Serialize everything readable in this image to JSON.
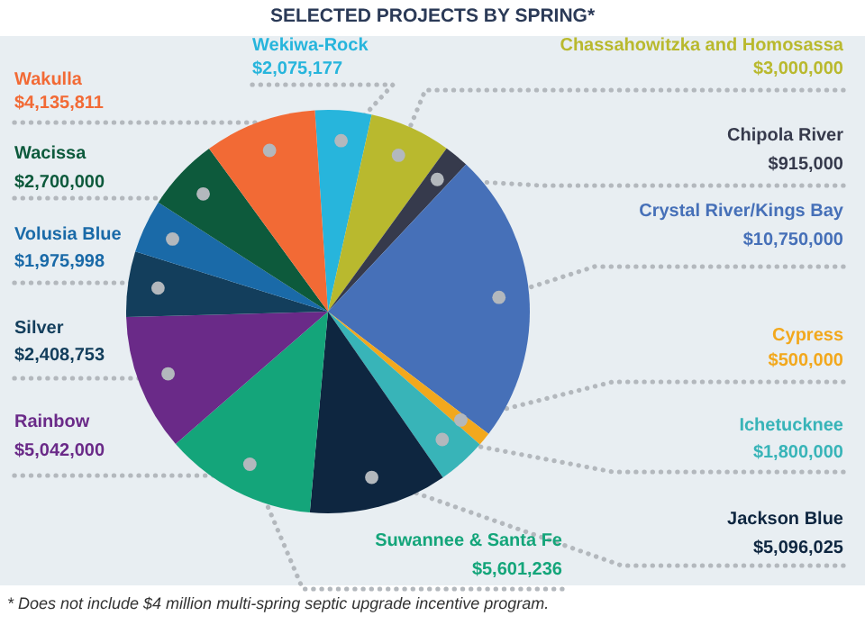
{
  "chart_data": {
    "type": "pie",
    "title": "SELECTED PROJECTS BY SPRING*",
    "categories": [
      "Wekiwa-Rock",
      "Chassahowitzka and Homosassa",
      "Chipola River",
      "Crystal River/Kings Bay",
      "Cypress",
      "Ichetucknee",
      "Jackson Blue",
      "Suwannee & Santa Fe",
      "Rainbow",
      "Silver",
      "Volusia Blue",
      "Wacissa",
      "Wakulla"
    ],
    "values": [
      2075177,
      3000000,
      915000,
      10750000,
      500000,
      1800000,
      5096025,
      5601236,
      5042000,
      2408753,
      1975998,
      2700000,
      4135811
    ],
    "value_labels": [
      "$2,075,177",
      "$3,000,000",
      "$915,000",
      "$10,750,000",
      "$500,000",
      "$1,800,000",
      "$5,096,025",
      "$5,601,236",
      "$5,042,000",
      "$2,408,753",
      "$1,975,998",
      "$2,700,000",
      "$4,135,811"
    ],
    "colors": [
      "#27b5dc",
      "#b9b92e",
      "#363a4c",
      "#4670b8",
      "#f2a81d",
      "#38b4b8",
      "#0e2640",
      "#14a57a",
      "#6a2a88",
      "#133e5c",
      "#1a6aa8",
      "#0d5a3c",
      "#f26a35"
    ],
    "annotations": [
      "* Does not include $4 million multi-spring septic upgrade incentive program."
    ]
  }
}
